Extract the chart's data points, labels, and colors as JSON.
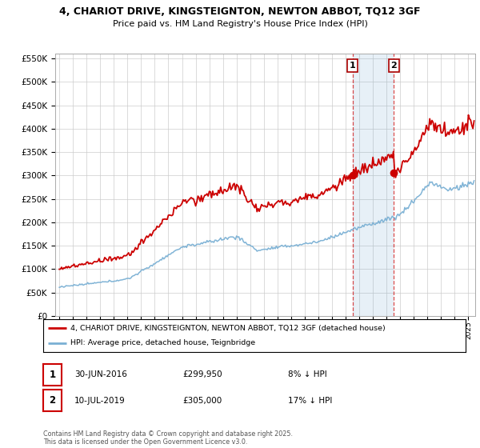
{
  "title_line1": "4, CHARIOT DRIVE, KINGSTEIGNTON, NEWTON ABBOT, TQ12 3GF",
  "title_line2": "Price paid vs. HM Land Registry's House Price Index (HPI)",
  "hpi_color": "#7ab0d4",
  "hpi_fill_color": "#d6e8f5",
  "property_color": "#cc0000",
  "background_color": "#ffffff",
  "grid_color": "#cccccc",
  "purchase1_year": 2016.5,
  "purchase1_price": 299950,
  "purchase2_year": 2019.54,
  "purchase2_price": 305000,
  "legend_line1": "4, CHARIOT DRIVE, KINGSTEIGNTON, NEWTON ABBOT, TQ12 3GF (detached house)",
  "legend_line2": "HPI: Average price, detached house, Teignbridge",
  "annotation1_date": "30-JUN-2016",
  "annotation1_price": "£299,950",
  "annotation1_pct": "8% ↓ HPI",
  "annotation2_date": "10-JUL-2019",
  "annotation2_price": "£305,000",
  "annotation2_pct": "17% ↓ HPI",
  "footnote": "Contains HM Land Registry data © Crown copyright and database right 2025.\nThis data is licensed under the Open Government Licence v3.0.",
  "ylim_min": 0,
  "ylim_max": 560000,
  "xlim_min": 1994.7,
  "xlim_max": 2025.5
}
